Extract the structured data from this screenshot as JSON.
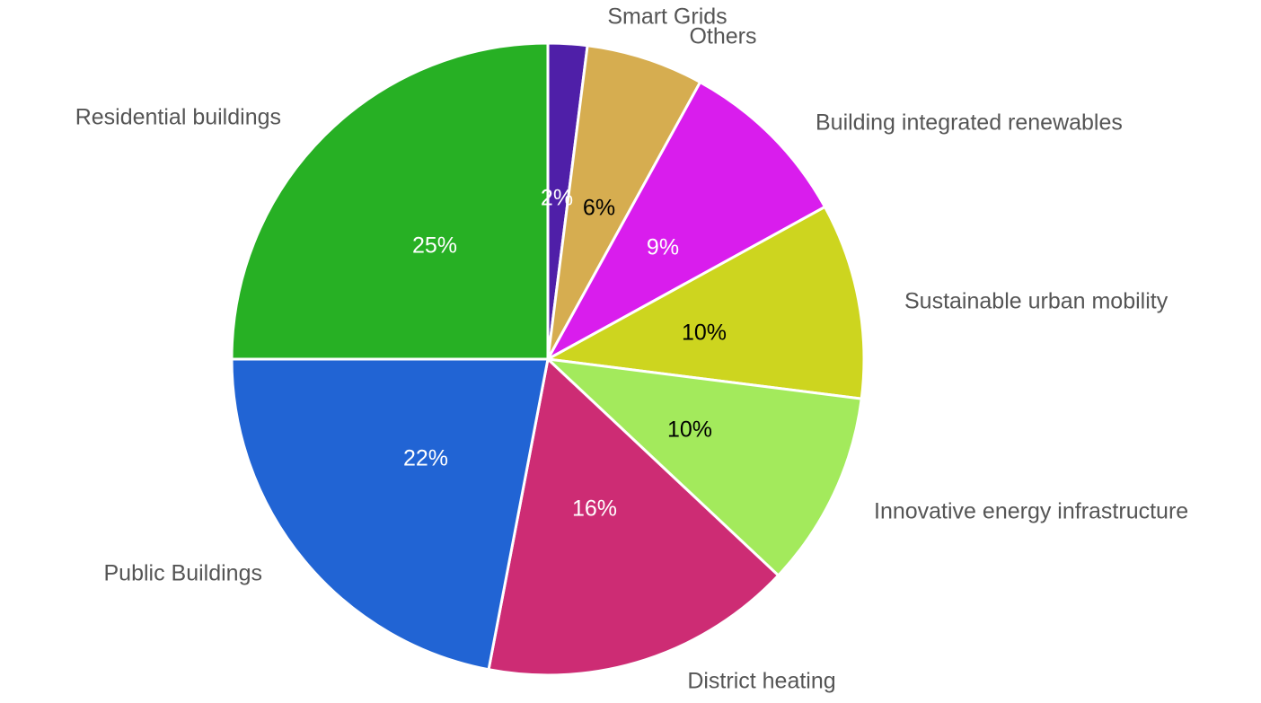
{
  "chart_data": {
    "type": "pie",
    "categories": [
      "Smart Grids",
      "Others",
      "Building integrated renewables",
      "Sustainable urban mobility",
      "Innovative energy infrastructure",
      "District heating",
      "Public Buildings",
      "Residential buildings"
    ],
    "values": [
      2,
      6,
      9,
      10,
      10,
      16,
      22,
      25
    ],
    "value_labels": [
      "2%",
      "6%",
      "9%",
      "10%",
      "10%",
      "16%",
      "22%",
      "25%"
    ],
    "colors": [
      "#4f1fa8",
      "#d6ad50",
      "#d91ded",
      "#cdd51f",
      "#a3ea5c",
      "#cd2c74",
      "#2164d4",
      "#27b024"
    ]
  }
}
